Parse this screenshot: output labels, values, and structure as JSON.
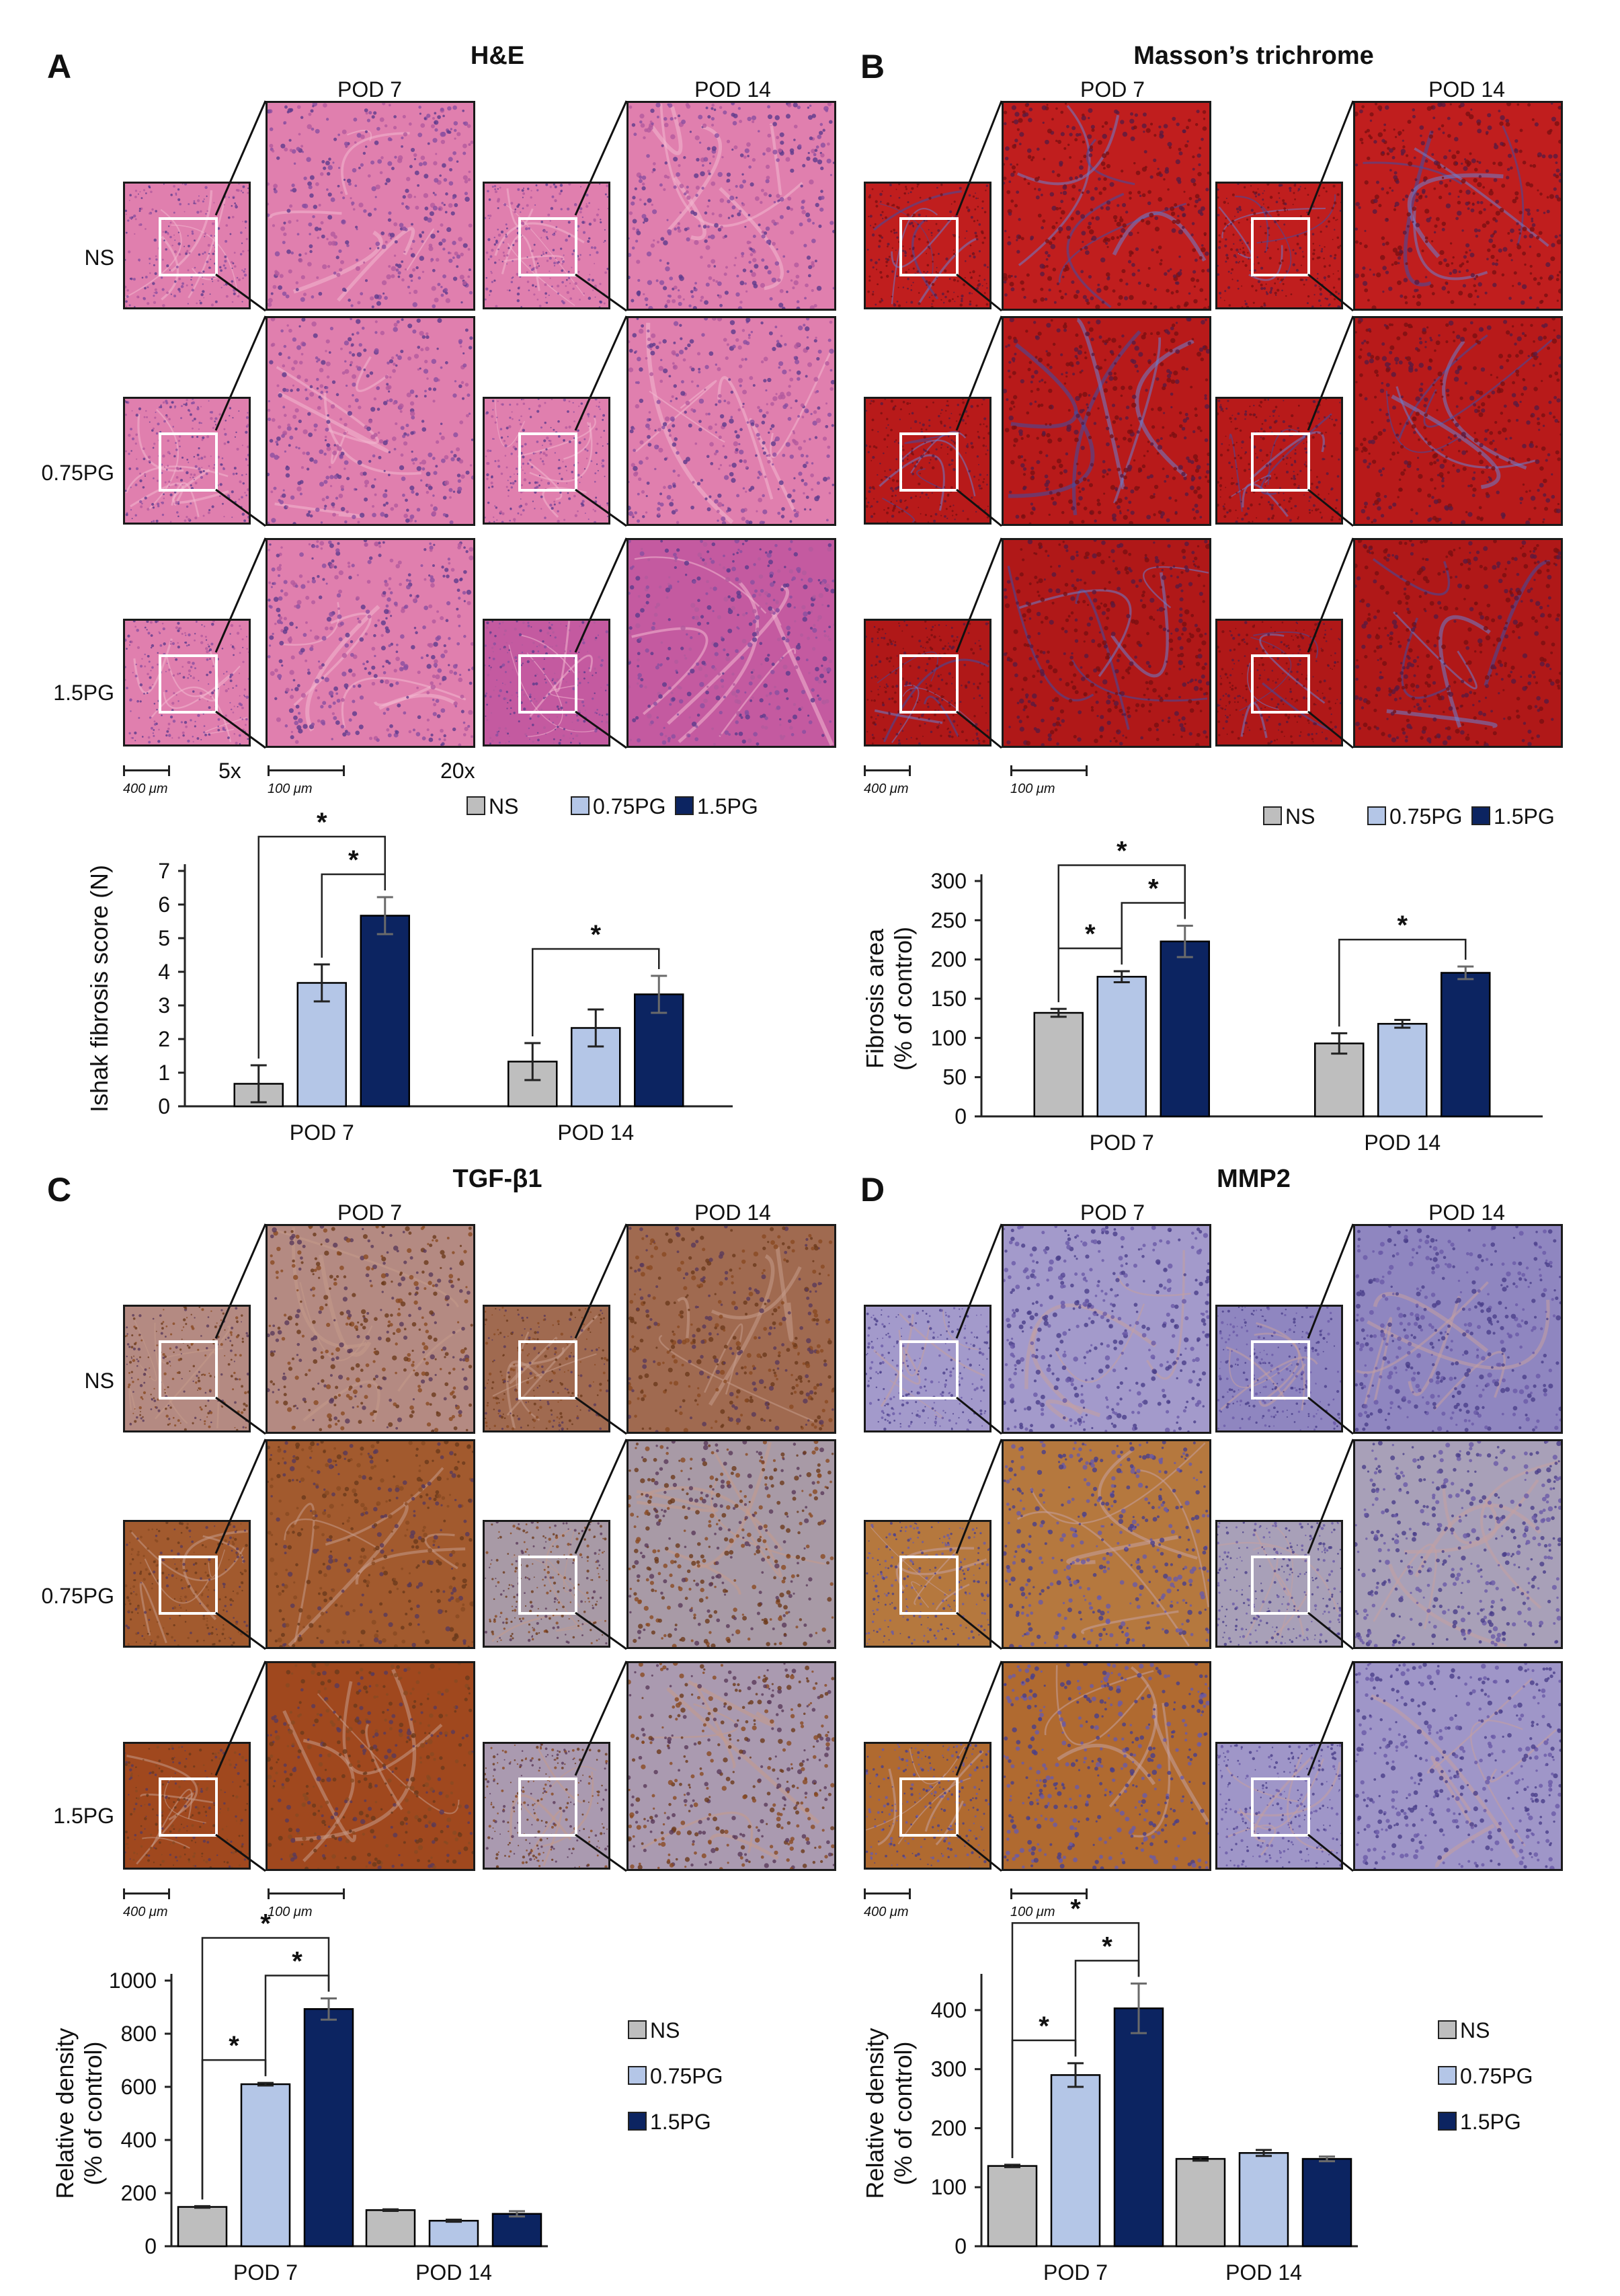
{
  "panels": [
    {
      "letter": "A",
      "title": "H&E",
      "stain": "he",
      "columns": [
        "POD 7",
        "POD 14"
      ],
      "rows": [
        "NS",
        "0.75PG",
        "1.5PG"
      ],
      "scale_low": "400 μm",
      "scale_high": "100 μm",
      "mag_low": "5x",
      "mag_high": "20x"
    },
    {
      "letter": "B",
      "title": "Masson’s trichrome",
      "stain": "mt",
      "columns": [
        "POD 7",
        "POD 14"
      ],
      "rows": [],
      "scale_low": "400 μm",
      "scale_high": "100 μm"
    },
    {
      "letter": "C",
      "title": "TGF-β1",
      "stain": "tgf",
      "columns": [
        "POD 7",
        "POD 14"
      ],
      "rows": [
        "NS",
        "0.75PG",
        "1.5PG"
      ],
      "scale_low": "400 μm",
      "scale_high": "100 μm"
    },
    {
      "letter": "D",
      "title": "MMP2",
      "stain": "mmp",
      "columns": [
        "POD 7",
        "POD 14"
      ],
      "rows": [],
      "scale_low": "400 μm",
      "scale_high": "100 μm"
    }
  ],
  "colors": {
    "NS": "#bebebe",
    "0.75PG": "#b4c6e7",
    "1.5PG": "#0c2461",
    "bar_edge": "#000000"
  },
  "chart_data": [
    {
      "type": "bar",
      "panel": "A",
      "categories": [
        "POD 7",
        "POD 14"
      ],
      "series": [
        {
          "name": "NS",
          "values": [
            0.67,
            1.33
          ],
          "errors": [
            0.55,
            0.55
          ]
        },
        {
          "name": "0.75PG",
          "values": [
            3.67,
            2.33
          ],
          "errors": [
            0.55,
            0.55
          ]
        },
        {
          "name": "1.5PG",
          "values": [
            5.67,
            3.33
          ],
          "errors": [
            0.55,
            0.55
          ]
        }
      ],
      "ylabel": "Ishak fibrosis score (N)",
      "ylim": [
        0,
        7
      ],
      "yticks": [
        0,
        1,
        2,
        3,
        4,
        5,
        6,
        7
      ],
      "legend": "top",
      "significance": [
        {
          "cat": 0,
          "from": 0,
          "to": 2,
          "label": "*"
        },
        {
          "cat": 0,
          "from": 1,
          "to": 2,
          "label": "*"
        },
        {
          "cat": 1,
          "from": 0,
          "to": 2,
          "label": "*"
        }
      ]
    },
    {
      "type": "bar",
      "panel": "B",
      "categories": [
        "POD 7",
        "POD 14"
      ],
      "series": [
        {
          "name": "NS",
          "values": [
            132,
            93
          ],
          "errors": [
            5,
            13
          ]
        },
        {
          "name": "0.75PG",
          "values": [
            178,
            118
          ],
          "errors": [
            7,
            5
          ]
        },
        {
          "name": "1.5PG",
          "values": [
            223,
            183
          ],
          "errors": [
            20,
            8
          ]
        }
      ],
      "ylabel": [
        "Fibrosis area",
        "(% of control)"
      ],
      "ylim": [
        0,
        300
      ],
      "yticks": [
        0,
        50,
        100,
        150,
        200,
        250,
        300
      ],
      "legend": "top",
      "significance": [
        {
          "cat": 0,
          "from": 0,
          "to": 1,
          "label": "*"
        },
        {
          "cat": 0,
          "from": 1,
          "to": 2,
          "label": "*"
        },
        {
          "cat": 0,
          "from": 0,
          "to": 2,
          "label": "*"
        },
        {
          "cat": 1,
          "from": 0,
          "to": 2,
          "label": "*"
        }
      ]
    },
    {
      "type": "bar",
      "panel": "C",
      "categories": [
        "POD 7",
        "POD 14"
      ],
      "series": [
        {
          "name": "NS",
          "values": [
            148,
            136
          ],
          "errors": [
            3,
            3
          ]
        },
        {
          "name": "0.75PG",
          "values": [
            610,
            96
          ],
          "errors": [
            5,
            4
          ]
        },
        {
          "name": "1.5PG",
          "values": [
            893,
            122
          ],
          "errors": [
            40,
            10
          ]
        }
      ],
      "ylabel": [
        "Relative density",
        "(% of control)"
      ],
      "ylim": [
        0,
        1000
      ],
      "yticks": [
        0,
        200,
        400,
        600,
        800,
        1000
      ],
      "legend": "right",
      "significance": [
        {
          "cat": 0,
          "from": 0,
          "to": 1,
          "label": "*"
        },
        {
          "cat": 0,
          "from": 1,
          "to": 2,
          "label": "*"
        },
        {
          "cat": 0,
          "from": 0,
          "to": 2,
          "label": "*"
        }
      ]
    },
    {
      "type": "bar",
      "panel": "D",
      "categories": [
        "POD 7",
        "POD 14"
      ],
      "series": [
        {
          "name": "NS",
          "values": [
            136,
            148
          ],
          "errors": [
            2,
            3
          ]
        },
        {
          "name": "0.75PG",
          "values": [
            290,
            158
          ],
          "errors": [
            20,
            5
          ]
        },
        {
          "name": "1.5PG",
          "values": [
            403,
            148
          ],
          "errors": [
            42,
            4
          ]
        }
      ],
      "ylabel": [
        "Relative density",
        "(% of control)"
      ],
      "ylim": [
        0,
        450
      ],
      "yticks": [
        0,
        100,
        200,
        300,
        400
      ],
      "legend": "right",
      "significance": [
        {
          "cat": 0,
          "from": 0,
          "to": 1,
          "label": "*"
        },
        {
          "cat": 0,
          "from": 1,
          "to": 2,
          "label": "*"
        },
        {
          "cat": 0,
          "from": 0,
          "to": 2,
          "label": "*"
        }
      ]
    }
  ]
}
